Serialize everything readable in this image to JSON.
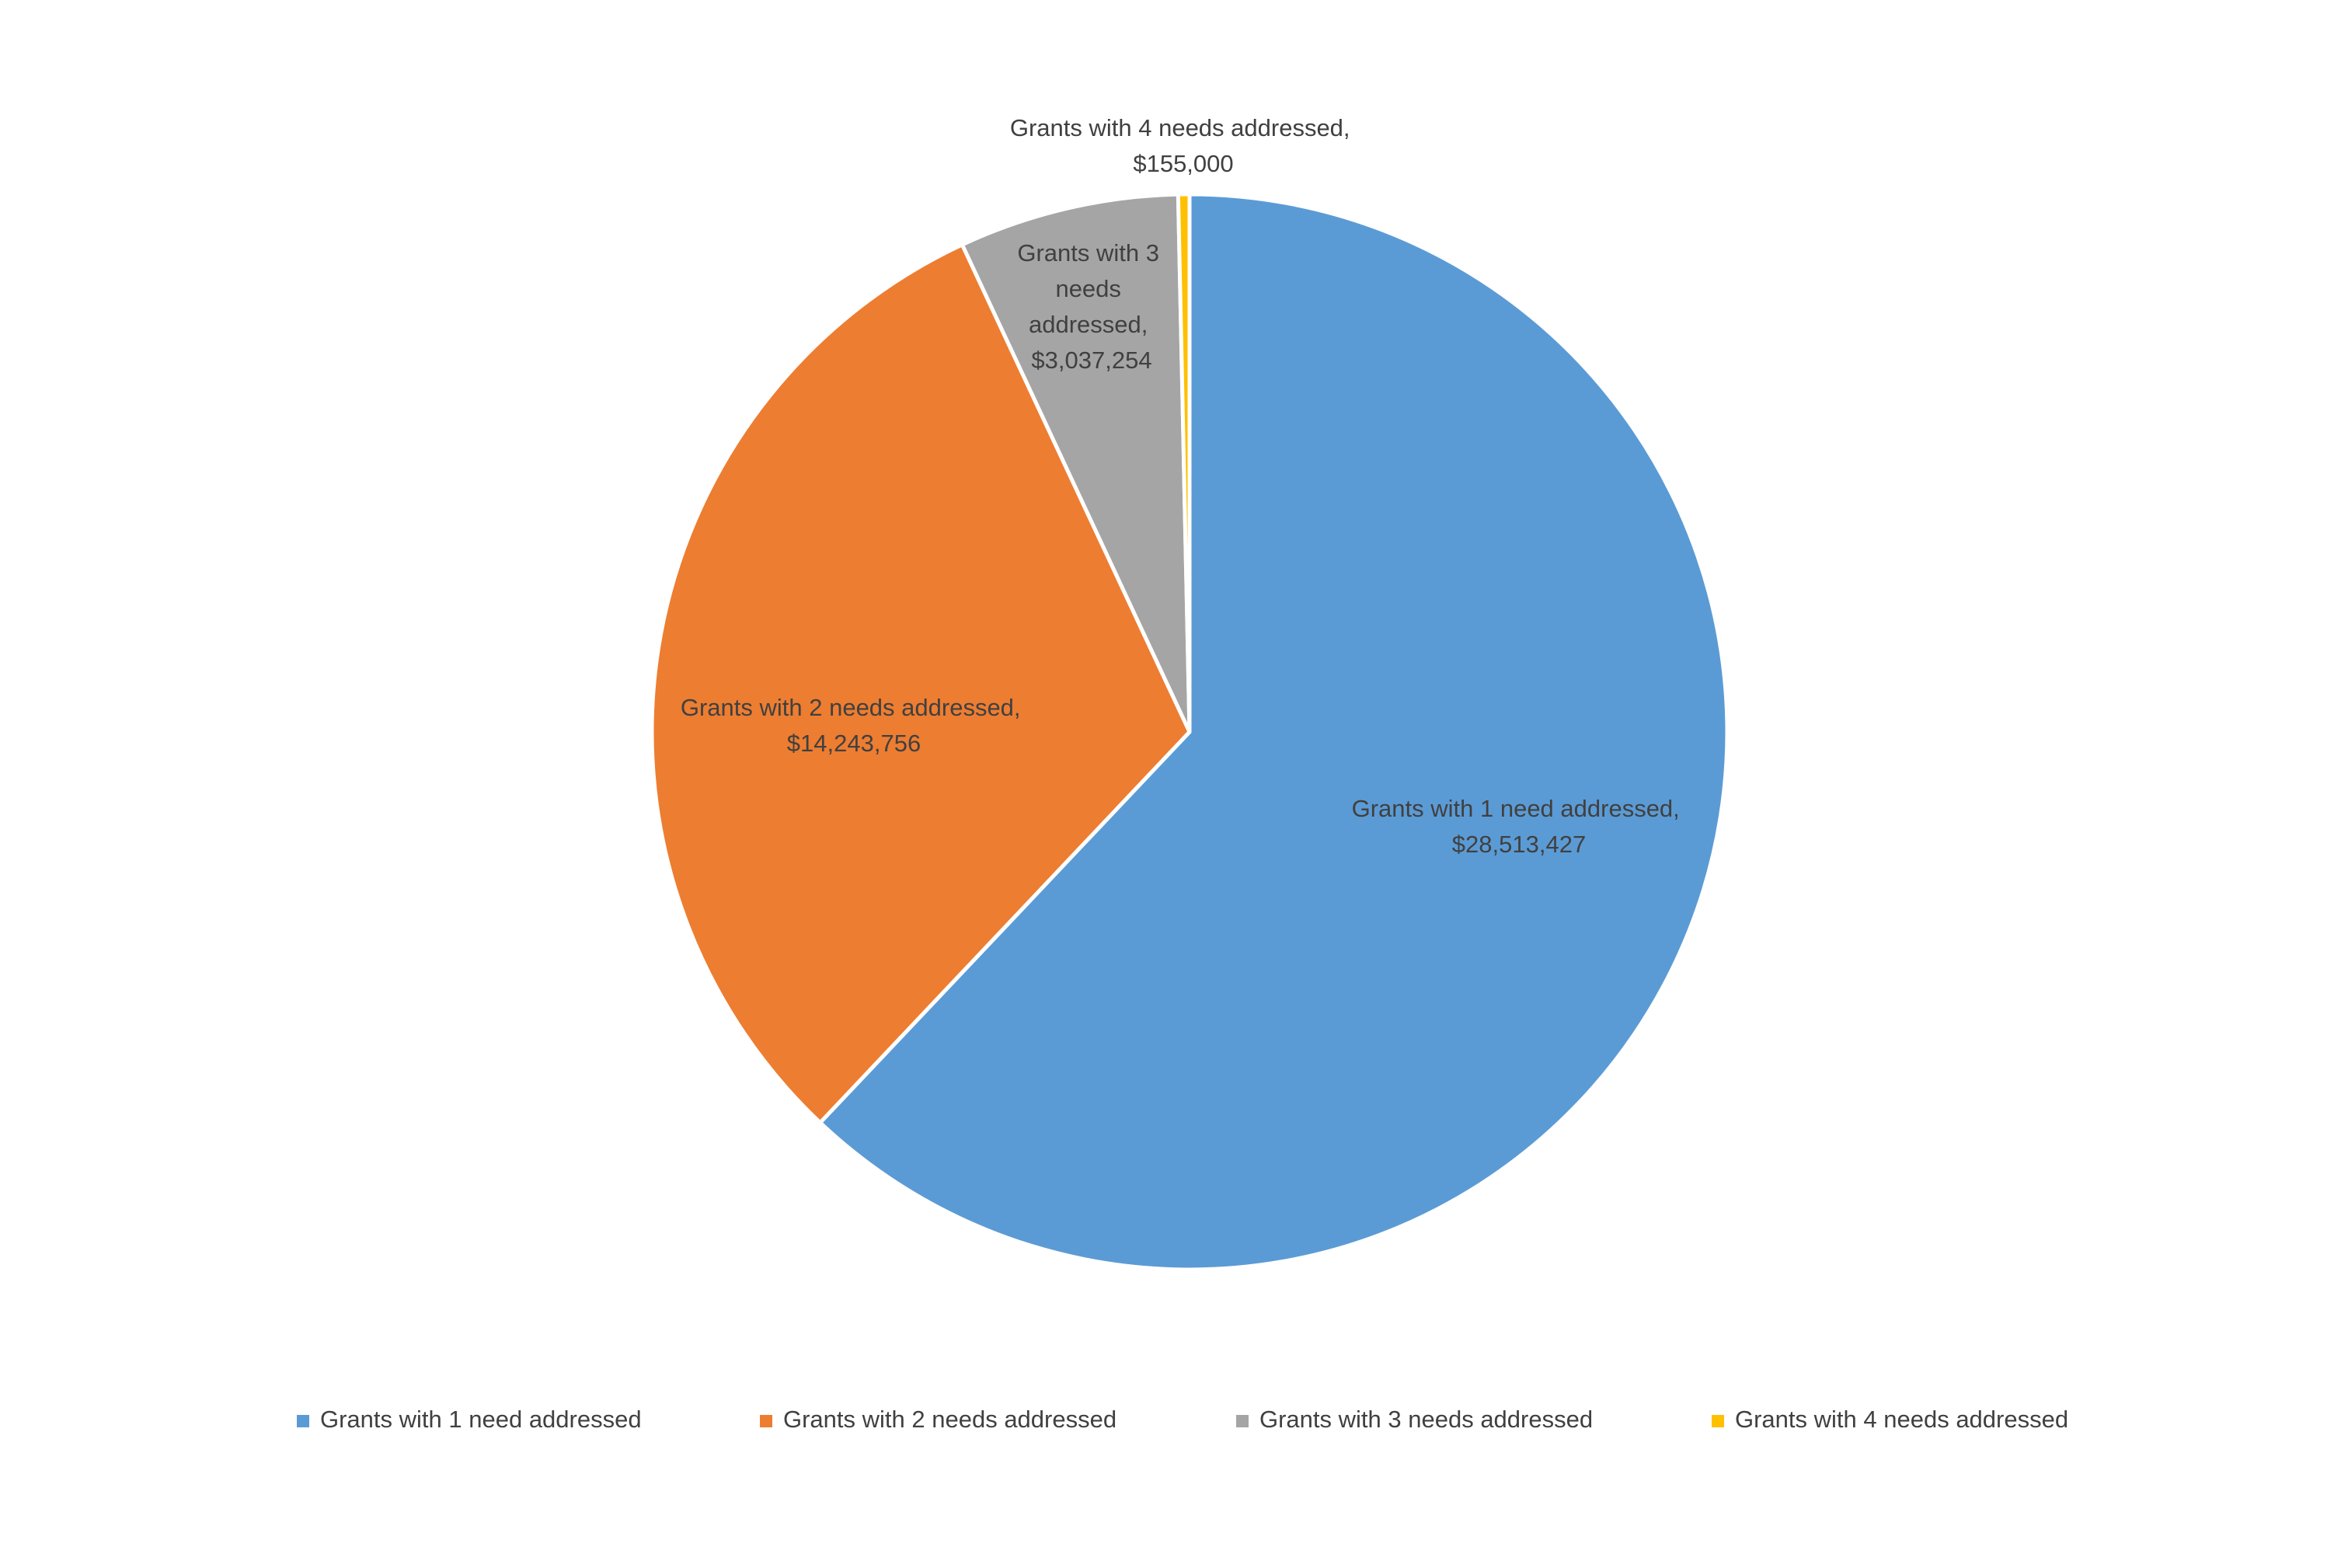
{
  "chart_data": {
    "type": "pie",
    "categories": [
      "Grants with 1 need addressed",
      "Grants with 2 needs addressed",
      "Grants with 3 needs addressed",
      "Grants with 4 needs addressed"
    ],
    "values": [
      28513427,
      14243756,
      3037254,
      155000
    ],
    "value_labels": [
      "Grants with 1 need addressed, $28,513,427",
      "Grants with 2 needs addressed, $14,243,756",
      "Grants with 3 needs addressed, $3,037,254",
      "Grants with 4 needs addressed, $155,000"
    ],
    "colors": [
      "#5b9bd5",
      "#ed7d31",
      "#a5a5a5",
      "#ffc000"
    ],
    "legend": "bottom"
  }
}
